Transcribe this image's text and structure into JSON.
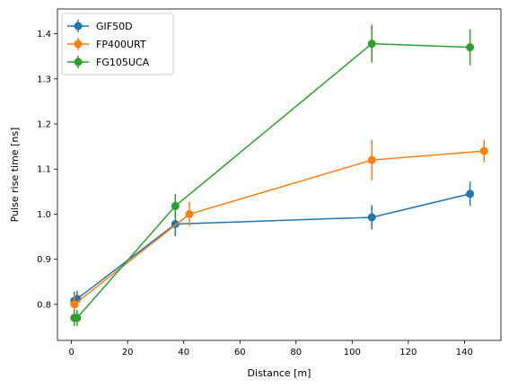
{
  "chart_data": {
    "type": "line",
    "title": "",
    "xlabel": "Distance [m]",
    "ylabel": "Pulse rise time [ns]",
    "xlim": [
      -5,
      153
    ],
    "ylim": [
      0.72,
      1.455
    ],
    "xticks": [
      0,
      20,
      40,
      60,
      80,
      100,
      120,
      140
    ],
    "yticks": [
      0.8,
      0.9,
      1.0,
      1.1,
      1.2,
      1.3,
      1.4
    ],
    "grid": false,
    "legend_position": "top-left",
    "series": [
      {
        "name": "GIF50D",
        "color": "#1f77b4",
        "points": [
          {
            "x": 1,
            "y": 0.808,
            "err": 0.02
          },
          {
            "x": 2,
            "y": 0.812,
            "err": 0.018
          },
          {
            "x": 37,
            "y": 0.978,
            "err": 0.027
          },
          {
            "x": 107,
            "y": 0.993,
            "err": 0.027
          },
          {
            "x": 142,
            "y": 1.045,
            "err": 0.027
          }
        ]
      },
      {
        "name": "FP400URT",
        "color": "#ff7f0e",
        "points": [
          {
            "x": 1,
            "y": 0.8,
            "err": 0.022
          },
          {
            "x": 42,
            "y": 1.0,
            "err": 0.027
          },
          {
            "x": 107,
            "y": 1.12,
            "err": 0.045
          },
          {
            "x": 147,
            "y": 1.14,
            "err": 0.025
          }
        ]
      },
      {
        "name": "FG105UCA",
        "color": "#2ca02c",
        "points": [
          {
            "x": 1,
            "y": 0.77,
            "err": 0.018
          },
          {
            "x": 2,
            "y": 0.77,
            "err": 0.018
          },
          {
            "x": 37,
            "y": 1.018,
            "err": 0.027
          },
          {
            "x": 107,
            "y": 1.378,
            "err": 0.042
          },
          {
            "x": 142,
            "y": 1.37,
            "err": 0.04
          }
        ]
      }
    ]
  }
}
